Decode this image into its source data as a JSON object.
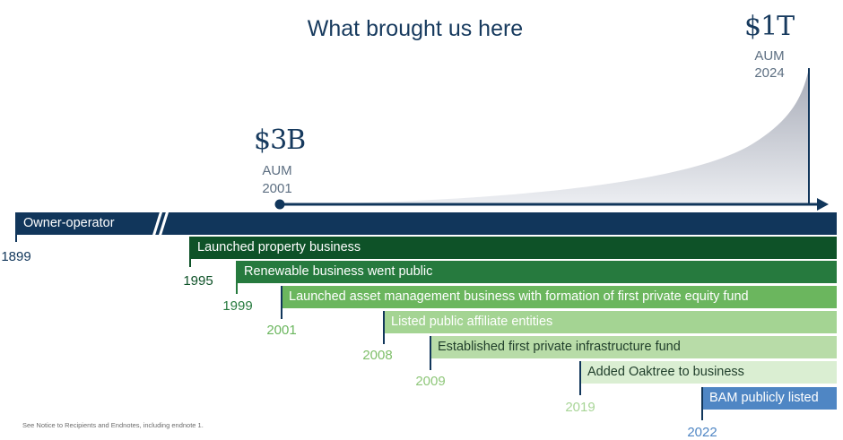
{
  "title": "What brought us here",
  "end_marker": {
    "amount": "$1T",
    "label": "AUM",
    "year": "2024"
  },
  "start_marker": {
    "amount": "$3B",
    "label": "AUM",
    "year": "2001"
  },
  "milestones": [
    {
      "label": "Owner-operator",
      "year": "1899"
    },
    {
      "label": "Launched property business",
      "year": "1995"
    },
    {
      "label": "Renewable business went public",
      "year": "1999"
    },
    {
      "label": "Launched asset management business with formation of first private equity fund",
      "year": "2001"
    },
    {
      "label": "Listed public affiliate entities",
      "year": "2008"
    },
    {
      "label": "Established first private infrastructure fund",
      "year": "2009"
    },
    {
      "label": "Added Oaktree to business",
      "year": "2019"
    },
    {
      "label": "BAM publicly listed",
      "year": "2022"
    }
  ],
  "colors": {
    "navy": "#11365b",
    "dark_green": "#0e5228",
    "green": "#267a3e",
    "mid_green": "#6bb65e",
    "light_green": "#a4d493",
    "pale_green": "#b8dca8",
    "mint": "#daeed2",
    "blue": "#4f86c4"
  },
  "footnote": "See Notice to Recipients and Endnotes, including endnote 1."
}
